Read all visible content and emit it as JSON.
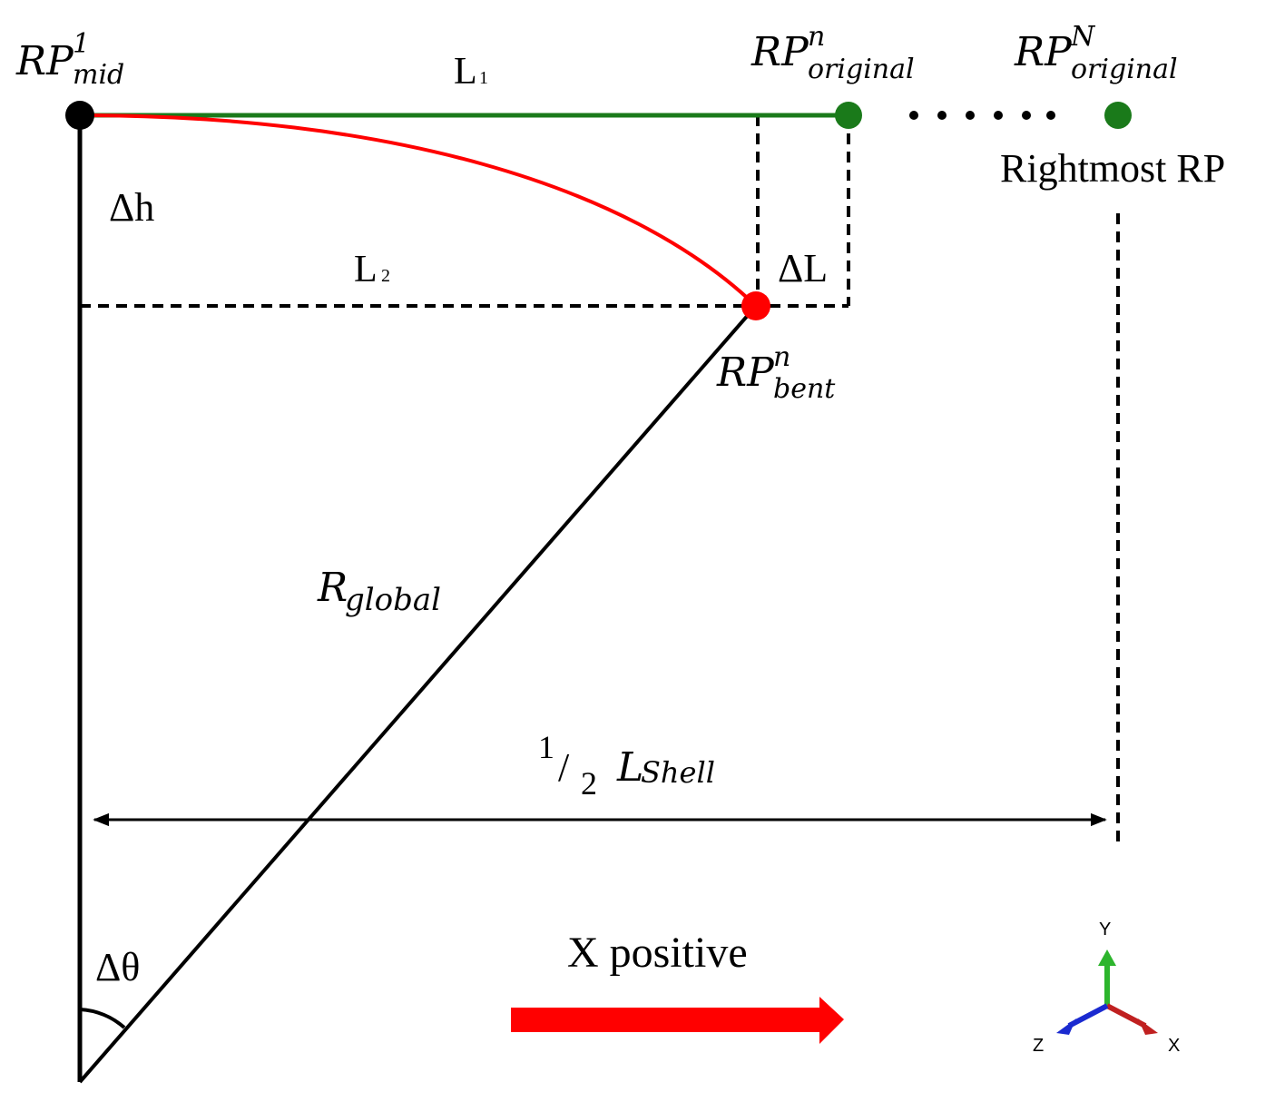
{
  "labels": {
    "rp_mid": {
      "base": "RP",
      "sup": "1",
      "sub": "mid"
    },
    "l1": {
      "base": "L",
      "sub": "1"
    },
    "rp_original_n": {
      "base": "RP",
      "sup": "n",
      "sub": "original"
    },
    "rp_original_N": {
      "base": "RP",
      "sup": "N",
      "sub": "original"
    },
    "rightmost": "Rightmost RP",
    "delta_h": "Δh",
    "l2": {
      "base": "L",
      "sub": "2"
    },
    "delta_l": "ΔL",
    "rp_bent": {
      "base": "RP",
      "sup": "n",
      "sub": "bent"
    },
    "r_global": {
      "base": "R",
      "sub": "global"
    },
    "half_shell": {
      "num": "1",
      "slash": "/",
      "den": "2",
      "base": "L",
      "sub": "Shell"
    },
    "x_positive": "X positive",
    "delta_theta": "Δθ",
    "axis_y": "Y",
    "axis_x": "X",
    "axis_z": "Z"
  }
}
